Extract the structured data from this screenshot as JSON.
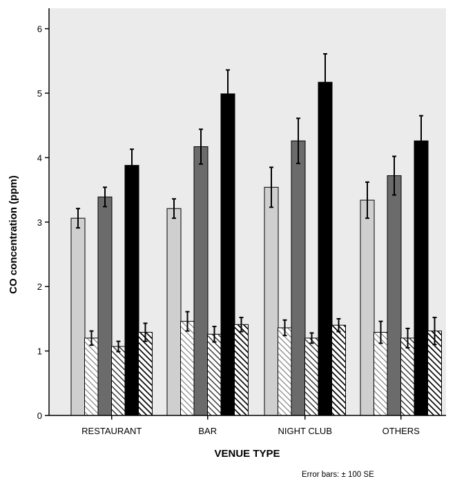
{
  "chart_data": {
    "type": "bar",
    "xlabel": "VENUE TYPE",
    "ylabel": "CO concentration (ppm)",
    "ylim": [
      0,
      6.5
    ],
    "yticks": [
      "0",
      "1",
      "2",
      "3",
      "4",
      "5",
      "6"
    ],
    "categories": [
      "RESTAURANT",
      "BAR",
      "NIGHT CLUB",
      "OTHERS"
    ],
    "grid": false,
    "legend": "none",
    "footnote": "Error bars: ± 100 SE",
    "series": [
      {
        "style": "solid",
        "color": "#cfcfcf",
        "values": [
          3.06,
          3.21,
          3.54,
          3.34
        ],
        "errors": [
          0.15,
          0.15,
          0.31,
          0.28
        ]
      },
      {
        "style": "hatched",
        "color": "#d9d9d9",
        "values": [
          1.2,
          1.46,
          1.36,
          1.29
        ],
        "errors": [
          0.11,
          0.15,
          0.12,
          0.17
        ]
      },
      {
        "style": "solid",
        "color": "#6b6b6b",
        "values": [
          3.39,
          4.17,
          4.26,
          3.72
        ],
        "errors": [
          0.15,
          0.27,
          0.35,
          0.3
        ]
      },
      {
        "style": "hatched",
        "color": "#6b6b6b",
        "values": [
          1.07,
          1.26,
          1.2,
          1.2
        ],
        "errors": [
          0.08,
          0.12,
          0.08,
          0.15
        ]
      },
      {
        "style": "solid",
        "color": "#000000",
        "values": [
          3.88,
          4.99,
          5.17,
          4.26
        ],
        "errors": [
          0.25,
          0.37,
          0.44,
          0.39
        ]
      },
      {
        "style": "hatched",
        "color": "#111111",
        "values": [
          1.29,
          1.41,
          1.4,
          1.31
        ],
        "errors": [
          0.14,
          0.11,
          0.1,
          0.21
        ]
      }
    ]
  }
}
